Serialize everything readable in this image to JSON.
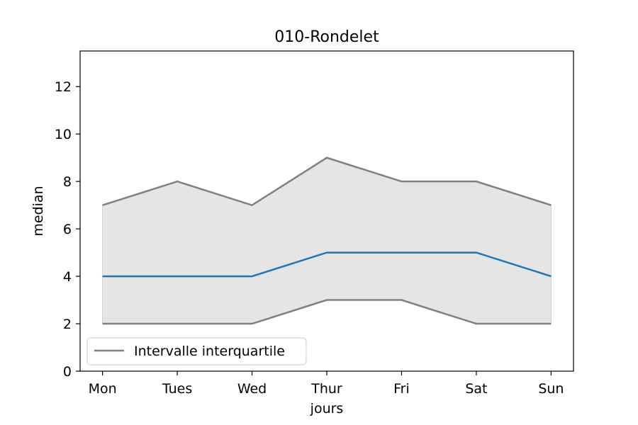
{
  "chart_data": {
    "type": "line",
    "title": "010-Rondelet",
    "xlabel": "jours",
    "ylabel": "median",
    "categories": [
      "Mon",
      "Tues",
      "Wed",
      "Thur",
      "Fri",
      "Sat",
      "Sun"
    ],
    "ylim": [
      0,
      13.5
    ],
    "yticks": [
      0,
      2,
      4,
      6,
      8,
      10,
      12
    ],
    "grid": false,
    "legend_placement": "lower-left",
    "series": [
      {
        "name": "",
        "role": "median",
        "values": [
          4,
          4,
          4,
          5,
          5,
          5,
          4
        ],
        "color": "#1f77b4"
      },
      {
        "name": "Intervalle interquartile",
        "role": "q3",
        "values": [
          7,
          8,
          7,
          9,
          8,
          8,
          7
        ],
        "color": "#808080"
      },
      {
        "name": "",
        "role": "q1",
        "values": [
          2,
          2,
          2,
          3,
          3,
          2,
          2
        ],
        "color": "#808080"
      }
    ],
    "band_fill_color": "#e5e5e5"
  }
}
